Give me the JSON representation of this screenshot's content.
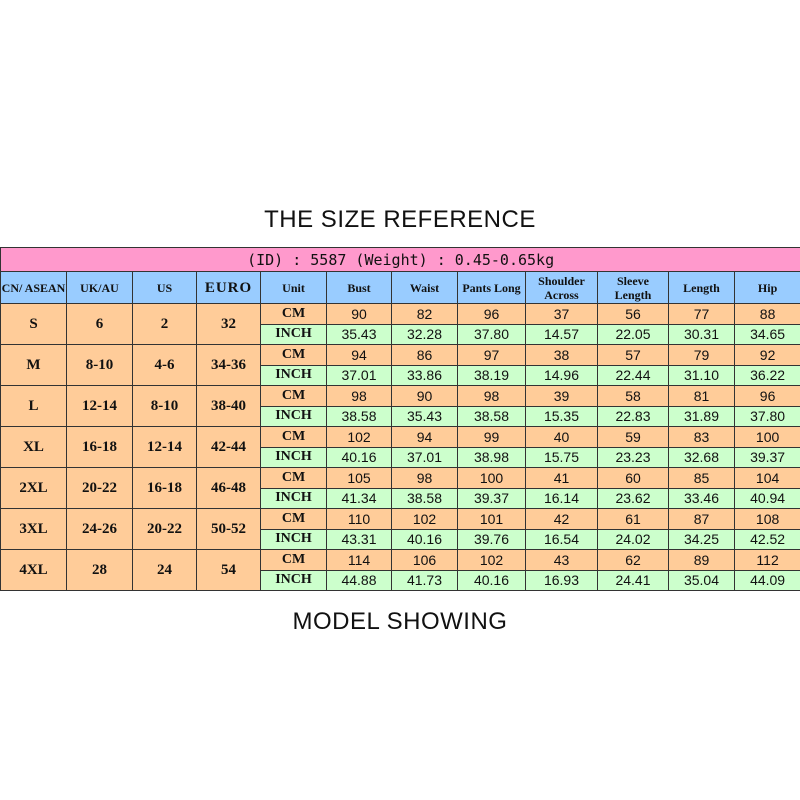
{
  "title": "THE SIZE REFERENCE",
  "footer_title": "MODEL SHOWING",
  "banner": "(ID) : 5587 (Weight) : 0.45-0.65kg",
  "colors": {
    "banner": "#ff99cc",
    "header": "#99ccff",
    "cm_row": "#ffcc99",
    "inch_row": "#ccffcc"
  },
  "headers": [
    "CN/ ASEAN",
    "UK/AU",
    "US",
    "EURO",
    "Unit",
    "Bust",
    "Waist",
    "Pants Long",
    "Shoulder Across",
    "Sleeve Length",
    "Length",
    "Hip"
  ],
  "units": [
    "CM",
    "INCH"
  ],
  "rows": [
    {
      "cn": "S",
      "uk": "6",
      "us": "2",
      "euro": "32",
      "cm": [
        "90",
        "82",
        "96",
        "37",
        "56",
        "77",
        "88"
      ],
      "inch": [
        "35.43",
        "32.28",
        "37.80",
        "14.57",
        "22.05",
        "30.31",
        "34.65"
      ]
    },
    {
      "cn": "M",
      "uk": "8-10",
      "us": "4-6",
      "euro": "34-36",
      "cm": [
        "94",
        "86",
        "97",
        "38",
        "57",
        "79",
        "92"
      ],
      "inch": [
        "37.01",
        "33.86",
        "38.19",
        "14.96",
        "22.44",
        "31.10",
        "36.22"
      ]
    },
    {
      "cn": "L",
      "uk": "12-14",
      "us": "8-10",
      "euro": "38-40",
      "cm": [
        "98",
        "90",
        "98",
        "39",
        "58",
        "81",
        "96"
      ],
      "inch": [
        "38.58",
        "35.43",
        "38.58",
        "15.35",
        "22.83",
        "31.89",
        "37.80"
      ]
    },
    {
      "cn": "XL",
      "uk": "16-18",
      "us": "12-14",
      "euro": "42-44",
      "cm": [
        "102",
        "94",
        "99",
        "40",
        "59",
        "83",
        "100"
      ],
      "inch": [
        "40.16",
        "37.01",
        "38.98",
        "15.75",
        "23.23",
        "32.68",
        "39.37"
      ]
    },
    {
      "cn": "2XL",
      "uk": "20-22",
      "us": "16-18",
      "euro": "46-48",
      "cm": [
        "105",
        "98",
        "100",
        "41",
        "60",
        "85",
        "104"
      ],
      "inch": [
        "41.34",
        "38.58",
        "39.37",
        "16.14",
        "23.62",
        "33.46",
        "40.94"
      ]
    },
    {
      "cn": "3XL",
      "uk": "24-26",
      "us": "20-22",
      "euro": "50-52",
      "cm": [
        "110",
        "102",
        "101",
        "42",
        "61",
        "87",
        "108"
      ],
      "inch": [
        "43.31",
        "40.16",
        "39.76",
        "16.54",
        "24.02",
        "34.25",
        "42.52"
      ]
    },
    {
      "cn": "4XL",
      "uk": "28",
      "us": "24",
      "euro": "54",
      "cm": [
        "114",
        "106",
        "102",
        "43",
        "62",
        "89",
        "112"
      ],
      "inch": [
        "44.88",
        "41.73",
        "40.16",
        "16.93",
        "24.41",
        "35.04",
        "44.09"
      ]
    }
  ]
}
